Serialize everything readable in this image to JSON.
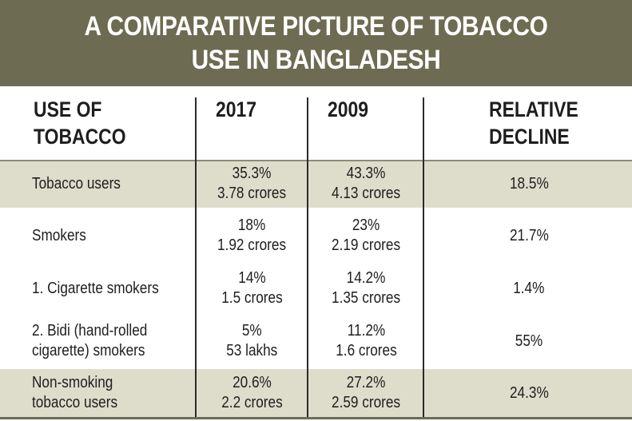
{
  "title": {
    "line1": "A COMPARATIVE PICTURE OF TOBACCO",
    "line2": "USE IN BANGLADESH"
  },
  "table": {
    "headers": {
      "use_line1": "USE OF",
      "use_line2": "TOBACCO",
      "y2017": "2017",
      "y2009": "2009",
      "decline_line1": "RELATIVE",
      "decline_line2": "DECLINE"
    },
    "rows": [
      {
        "label_line1": "Tobacco users",
        "label_line2": "",
        "v2017_pct": "35.3%",
        "v2017_count": "3.78 crores",
        "v2009_pct": "43.3%",
        "v2009_count": "4.13 crores",
        "decline": "18.5%"
      },
      {
        "label_line1": "Smokers",
        "label_line2": "",
        "v2017_pct": "18%",
        "v2017_count": "1.92 crores",
        "v2009_pct": "23%",
        "v2009_count": "2.19 crores",
        "decline": "21.7%"
      },
      {
        "label_line1": "1. Cigarette smokers",
        "label_line2": "",
        "v2017_pct": "14%",
        "v2017_count": "1.5 crores",
        "v2009_pct": "14.2%",
        "v2009_count": "1.35 crores",
        "decline": "1.4%"
      },
      {
        "label_line1": "2. Bidi (hand-rolled",
        "label_line2": "cigarette) smokers",
        "v2017_pct": "5%",
        "v2017_count": "53 lakhs",
        "v2009_pct": "11.2%",
        "v2009_count": "1.6 crores",
        "decline": "55%"
      },
      {
        "label_line1": "Non-smoking",
        "label_line2": "tobacco users",
        "v2017_pct": "20.6%",
        "v2017_count": "2.2 crores",
        "v2009_pct": "27.2%",
        "v2009_count": "2.59 crores",
        "decline": "24.3%"
      }
    ]
  },
  "colors": {
    "banner_bg": "#6d6c52",
    "shaded_row_bg": "#deddcc",
    "text": "#1e1e1e"
  }
}
